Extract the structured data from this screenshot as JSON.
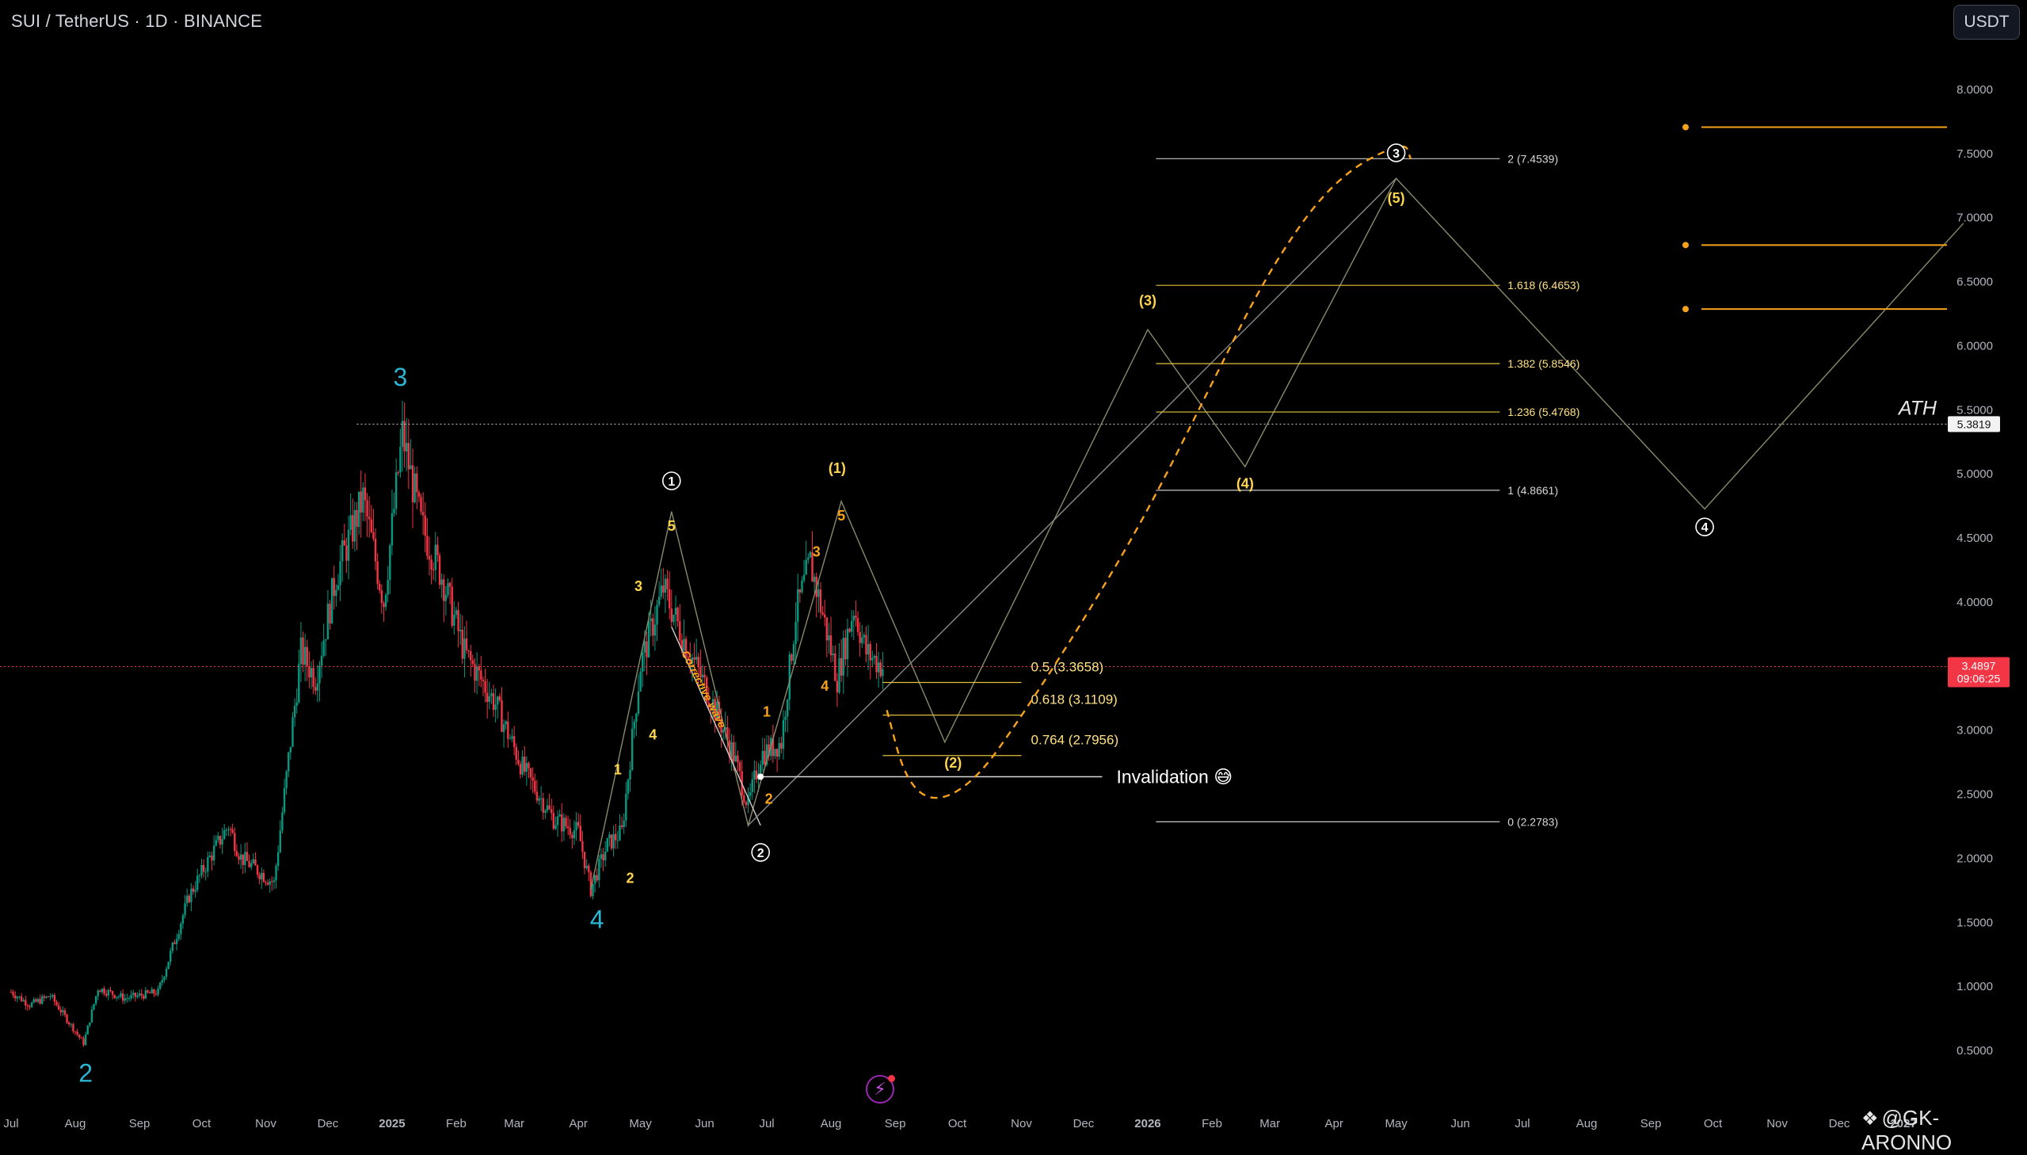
{
  "header": {
    "symbol_title": "SUI / TetherUS · 1D · BINANCE",
    "currency": "USDT"
  },
  "watermark": {
    "logo_glyph": "❖",
    "text": "@GK-ARONNO"
  },
  "colors": {
    "background": "#000000",
    "up_candle": "#089981",
    "down_candle": "#f23645",
    "fib_yellow": "#e3c13b",
    "fib_white": "#c8c8c8",
    "projection_orange": "#f7a21b",
    "wave_cyan": "#2bb6d3",
    "wave_orange": "#f7a21b",
    "wave_yellow": "#ffd54f",
    "price_tag_red": "#f23645"
  },
  "chart_data": {
    "type": "candlestick",
    "title": "SUI / TetherUS · 1D · BINANCE",
    "x_axis": {
      "type": "time",
      "range": [
        "2024-07-01",
        "2027-01-31"
      ],
      "tick_labels": [
        {
          "date": "2024-07-01",
          "label": "Jul"
        },
        {
          "date": "2024-08-01",
          "label": "Aug"
        },
        {
          "date": "2024-09-01",
          "label": "Sep"
        },
        {
          "date": "2024-10-01",
          "label": "Oct"
        },
        {
          "date": "2024-11-01",
          "label": "Nov"
        },
        {
          "date": "2024-12-01",
          "label": "Dec"
        },
        {
          "date": "2025-01-01",
          "label": "2025",
          "bold": true
        },
        {
          "date": "2025-02-01",
          "label": "Feb"
        },
        {
          "date": "2025-03-01",
          "label": "Mar"
        },
        {
          "date": "2025-04-01",
          "label": "Apr"
        },
        {
          "date": "2025-05-01",
          "label": "May"
        },
        {
          "date": "2025-06-01",
          "label": "Jun"
        },
        {
          "date": "2025-07-01",
          "label": "Jul"
        },
        {
          "date": "2025-08-01",
          "label": "Aug"
        },
        {
          "date": "2025-09-01",
          "label": "Sep"
        },
        {
          "date": "2025-10-01",
          "label": "Oct"
        },
        {
          "date": "2025-11-01",
          "label": "Nov"
        },
        {
          "date": "2025-12-01",
          "label": "Dec"
        },
        {
          "date": "2026-01-01",
          "label": "2026",
          "bold": true
        },
        {
          "date": "2026-02-01",
          "label": "Feb"
        },
        {
          "date": "2026-03-01",
          "label": "Mar"
        },
        {
          "date": "2026-04-01",
          "label": "Apr"
        },
        {
          "date": "2026-05-01",
          "label": "May"
        },
        {
          "date": "2026-06-01",
          "label": "Jun"
        },
        {
          "date": "2026-07-01",
          "label": "Jul"
        },
        {
          "date": "2026-08-01",
          "label": "Aug"
        },
        {
          "date": "2026-09-01",
          "label": "Sep"
        },
        {
          "date": "2026-10-01",
          "label": "Oct"
        },
        {
          "date": "2026-11-01",
          "label": "Nov"
        },
        {
          "date": "2026-12-01",
          "label": "Dec"
        },
        {
          "date": "2027-01-01",
          "label": "2027",
          "bold": true
        }
      ]
    },
    "y_axis": {
      "range": [
        0.05,
        8.6
      ],
      "position": "right",
      "tick_labels": [
        "0.5000",
        "1.0000",
        "1.5000",
        "2.0000",
        "2.5000",
        "3.0000",
        "3.5000",
        "4.0000",
        "4.5000",
        "5.0000",
        "5.5000",
        "6.0000",
        "6.5000",
        "7.0000",
        "7.5000",
        "8.0000"
      ],
      "tick_values": [
        0.5,
        1,
        1.5,
        2,
        2.5,
        3,
        3.5,
        4,
        4.5,
        5,
        5.5,
        6,
        6.5,
        7,
        7.5,
        8
      ]
    },
    "price_anchors": [
      {
        "date": "2024-07-01",
        "price": 0.95
      },
      {
        "date": "2024-07-10",
        "price": 0.85
      },
      {
        "date": "2024-07-20",
        "price": 0.92
      },
      {
        "date": "2024-08-05",
        "price": 0.55
      },
      {
        "date": "2024-08-12",
        "price": 0.98
      },
      {
        "date": "2024-08-25",
        "price": 0.9
      },
      {
        "date": "2024-09-10",
        "price": 0.95
      },
      {
        "date": "2024-09-25",
        "price": 1.7
      },
      {
        "date": "2024-10-05",
        "price": 2.0
      },
      {
        "date": "2024-10-14",
        "price": 2.25
      },
      {
        "date": "2024-10-20",
        "price": 2.0
      },
      {
        "date": "2024-11-05",
        "price": 1.8
      },
      {
        "date": "2024-11-18",
        "price": 3.6
      },
      {
        "date": "2024-11-25",
        "price": 3.4
      },
      {
        "date": "2024-12-05",
        "price": 4.2
      },
      {
        "date": "2024-12-18",
        "price": 4.8
      },
      {
        "date": "2024-12-28",
        "price": 4.0
      },
      {
        "date": "2025-01-06",
        "price": 5.3
      },
      {
        "date": "2025-01-15",
        "price": 4.6
      },
      {
        "date": "2025-01-25",
        "price": 4.2
      },
      {
        "date": "2025-02-05",
        "price": 3.6
      },
      {
        "date": "2025-02-20",
        "price": 3.2
      },
      {
        "date": "2025-03-05",
        "price": 2.7
      },
      {
        "date": "2025-03-20",
        "price": 2.3
      },
      {
        "date": "2025-04-01",
        "price": 2.2
      },
      {
        "date": "2025-04-07",
        "price": 1.75
      },
      {
        "date": "2025-04-15",
        "price": 2.1
      },
      {
        "date": "2025-04-22",
        "price": 2.2
      },
      {
        "date": "2025-05-01",
        "price": 3.5
      },
      {
        "date": "2025-05-12",
        "price": 4.1
      },
      {
        "date": "2025-05-22",
        "price": 3.7
      },
      {
        "date": "2025-06-05",
        "price": 3.2
      },
      {
        "date": "2025-06-15",
        "price": 2.8
      },
      {
        "date": "2025-06-22",
        "price": 2.4
      },
      {
        "date": "2025-06-28",
        "price": 2.8
      },
      {
        "date": "2025-07-08",
        "price": 2.9
      },
      {
        "date": "2025-07-15",
        "price": 3.9
      },
      {
        "date": "2025-07-22",
        "price": 4.3
      },
      {
        "date": "2025-07-28",
        "price": 3.9
      },
      {
        "date": "2025-08-04",
        "price": 3.4
      },
      {
        "date": "2025-08-12",
        "price": 3.95
      },
      {
        "date": "2025-08-18",
        "price": 3.6
      },
      {
        "date": "2025-08-26",
        "price": 3.49
      }
    ],
    "current_price": {
      "value": 3.4897,
      "label": "3.4897",
      "countdown": "09:06:25"
    },
    "ath": {
      "value": 5.3819,
      "label": "5.3819",
      "text": "ATH"
    },
    "fib_retracement": [
      {
        "level": "0.5",
        "price": 3.3658,
        "label": "0.5 (3.3658)"
      },
      {
        "level": "0.618",
        "price": 3.1109,
        "label": "0.618 (3.1109)"
      },
      {
        "level": "0.764",
        "price": 2.7956,
        "label": "0.764 (2.7956)"
      }
    ],
    "fib_extension": [
      {
        "level": "2",
        "price": 7.4539,
        "label": "2 (7.4539)",
        "color": "white"
      },
      {
        "level": "1.618",
        "price": 6.4653,
        "label": "1.618 (6.4653)",
        "color": "yellow"
      },
      {
        "level": "1.382",
        "price": 5.8546,
        "label": "1.382 (5.8546)",
        "color": "yellow"
      },
      {
        "level": "1.236",
        "price": 5.4768,
        "label": "1.236 (5.4768)",
        "color": "yellow"
      },
      {
        "level": "1",
        "price": 4.8661,
        "label": "1 (4.8661)",
        "color": "white"
      },
      {
        "level": "0",
        "price": 2.2783,
        "label": "0 (2.2783)",
        "color": "white"
      }
    ],
    "invalidation": {
      "price": 2.63,
      "label": "Invalidation 😅"
    },
    "target_lines": [
      7.7,
      6.78,
      6.28
    ],
    "wave_labels": [
      {
        "text": "2",
        "date": "2024-08-06",
        "price": 0.25,
        "style": "cyan-large"
      },
      {
        "text": "3",
        "date": "2025-01-05",
        "price": 5.68,
        "style": "cyan-large"
      },
      {
        "text": "4",
        "date": "2025-04-10",
        "price": 1.45,
        "style": "cyan-large"
      },
      {
        "text": "1",
        "date": "2025-04-20",
        "price": 2.65,
        "style": "yellow"
      },
      {
        "text": "2",
        "date": "2025-04-26",
        "price": 1.8,
        "style": "yellow"
      },
      {
        "text": "3",
        "date": "2025-04-30",
        "price": 4.08,
        "style": "yellow"
      },
      {
        "text": "4",
        "date": "2025-05-07",
        "price": 2.92,
        "style": "yellow"
      },
      {
        "text": "5",
        "date": "2025-05-16",
        "price": 4.55,
        "style": "yellow"
      },
      {
        "text": "①",
        "date": "2025-05-16",
        "price": 4.89,
        "style": "circle"
      },
      {
        "text": "②",
        "date": "2025-06-28",
        "price": 1.99,
        "style": "circle"
      },
      {
        "text": "1",
        "date": "2025-07-01",
        "price": 3.1,
        "style": "orange"
      },
      {
        "text": "2",
        "date": "2025-07-02",
        "price": 2.42,
        "style": "orange"
      },
      {
        "text": "3",
        "date": "2025-07-25",
        "price": 4.35,
        "style": "orange"
      },
      {
        "text": "4",
        "date": "2025-07-29",
        "price": 3.3,
        "style": "orange"
      },
      {
        "text": "5",
        "date": "2025-08-06",
        "price": 4.63,
        "style": "orange"
      },
      {
        "text": "(1)",
        "date": "2025-08-04",
        "price": 5.0,
        "style": "yellow"
      },
      {
        "text": "(2)",
        "date": "2025-09-29",
        "price": 2.7,
        "style": "yellow"
      },
      {
        "text": "(3)",
        "date": "2026-01-01",
        "price": 6.31,
        "style": "yellow"
      },
      {
        "text": "(4)",
        "date": "2026-02-17",
        "price": 4.88,
        "style": "yellow"
      },
      {
        "text": "(5)",
        "date": "2026-05-01",
        "price": 7.11,
        "style": "yellow"
      },
      {
        "text": "③",
        "date": "2026-05-01",
        "price": 7.45,
        "style": "circle"
      },
      {
        "text": "④",
        "date": "2026-09-27",
        "price": 4.53,
        "style": "circle"
      }
    ],
    "annotations": [
      {
        "text": "Corrective wave",
        "style": "orange-italic"
      }
    ]
  }
}
